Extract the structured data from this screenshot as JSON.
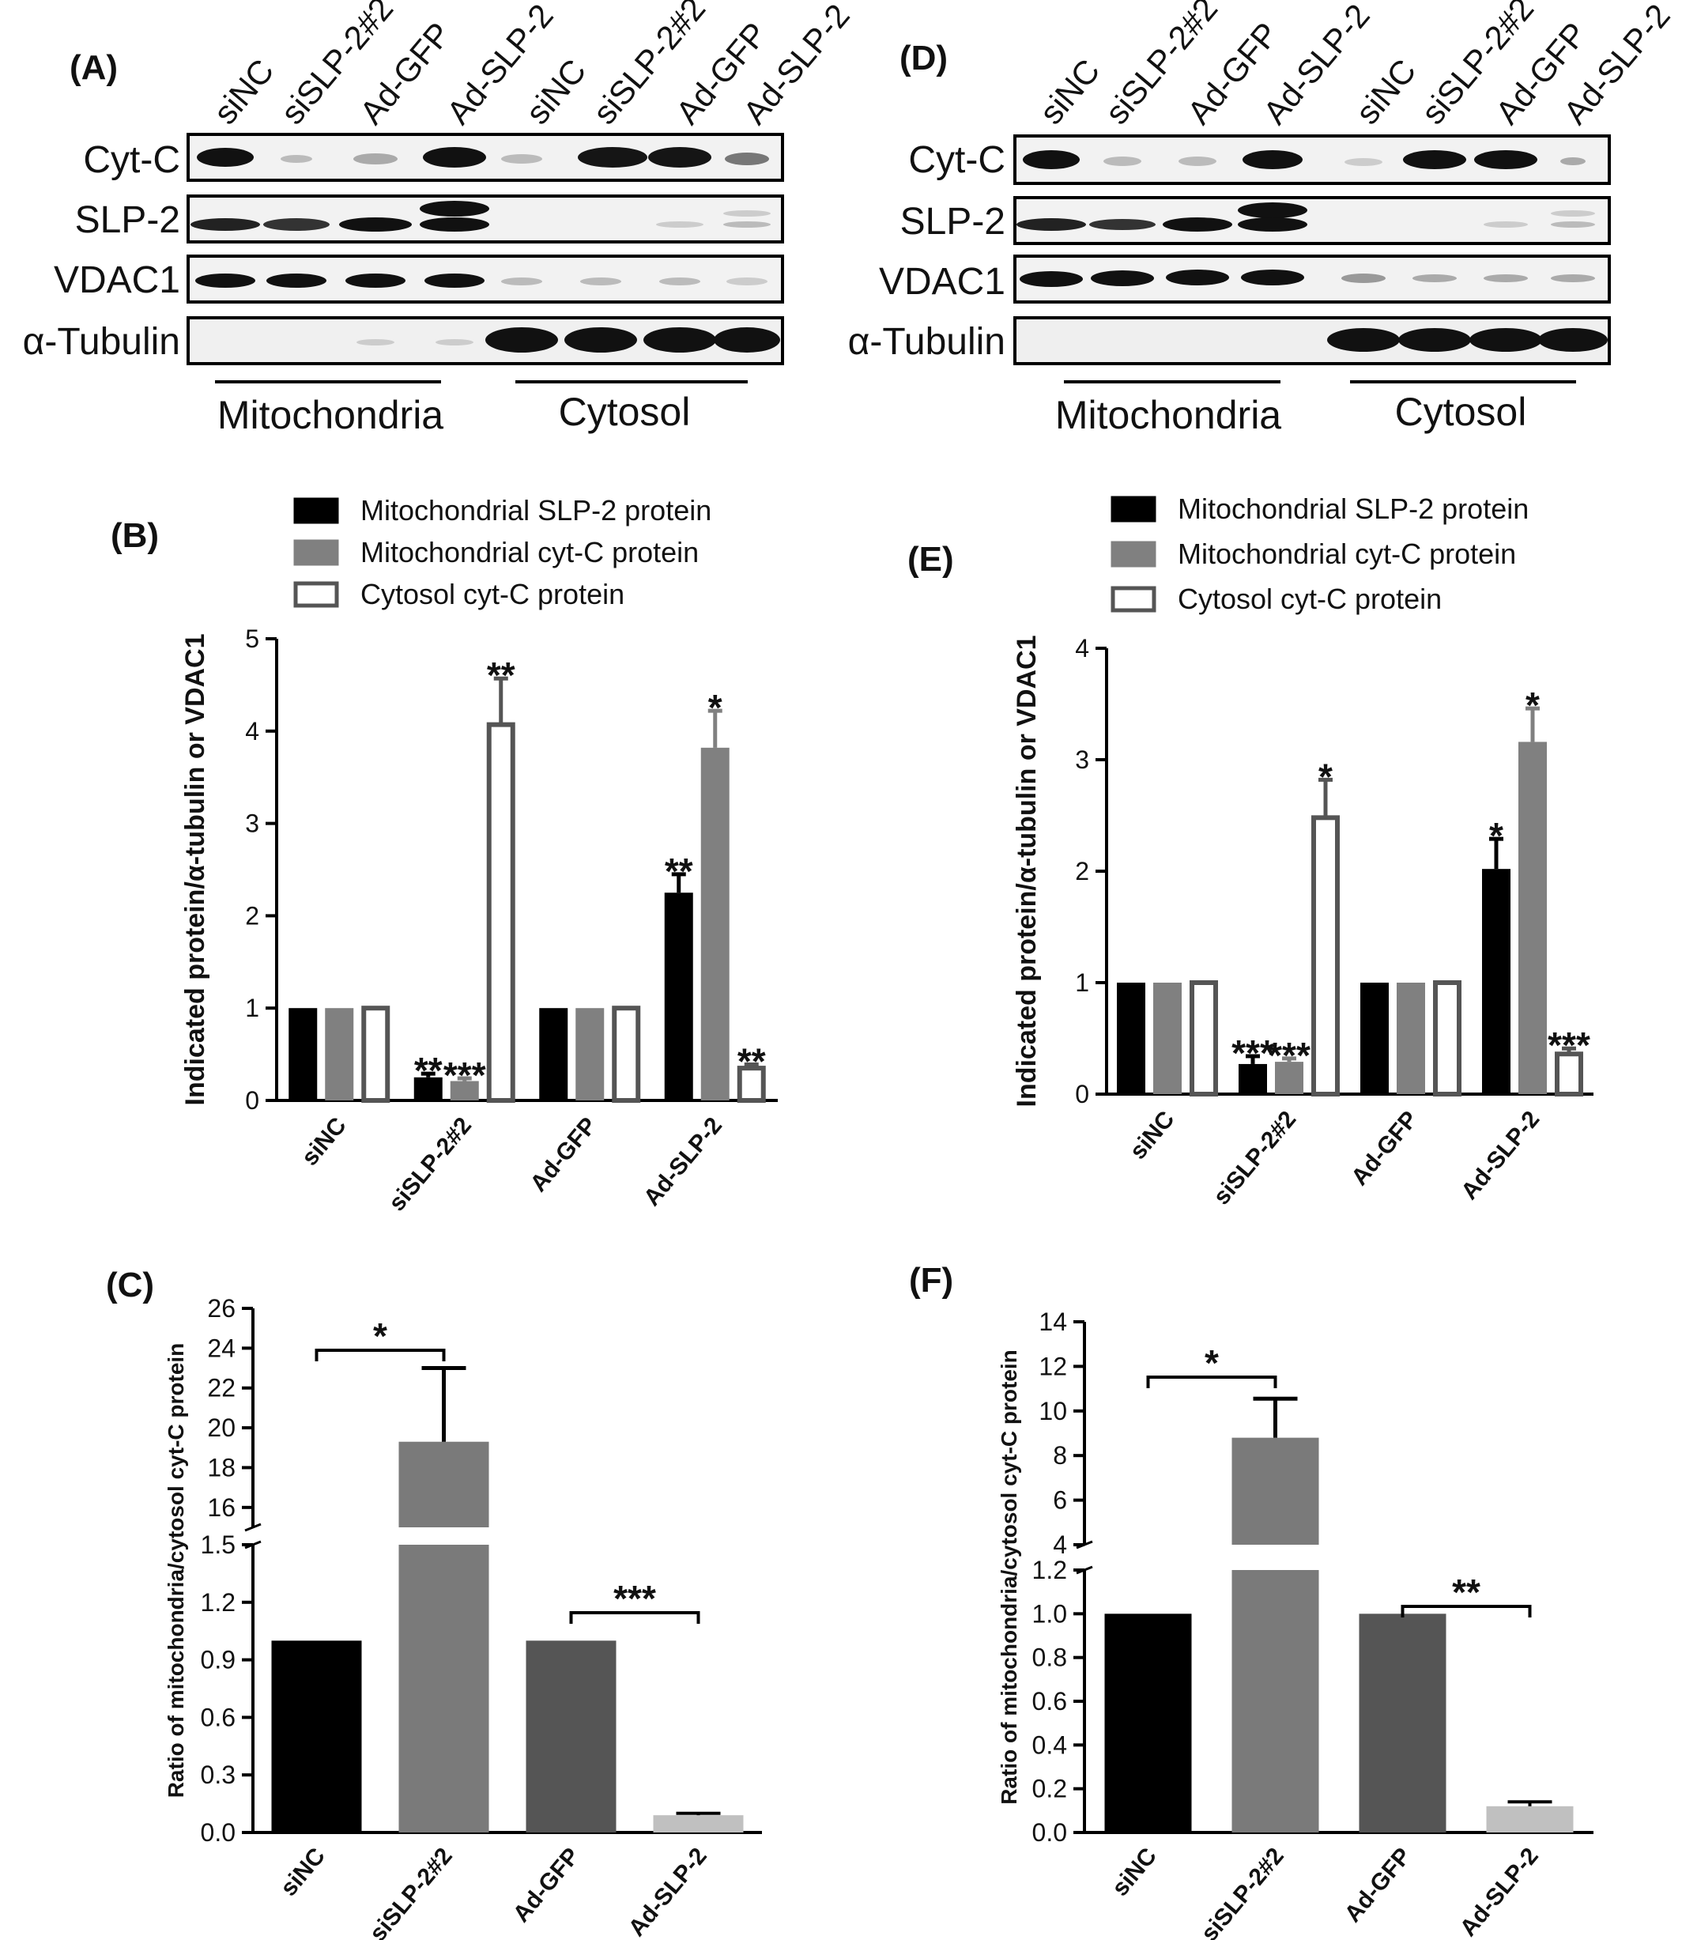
{
  "panels": {
    "a": "(A)",
    "b": "(B)",
    "c": "(C)",
    "d": "(D)",
    "e": "(E)",
    "f": "(F)"
  },
  "blots": [
    {
      "lanes": [
        "siNC",
        "siSLP-2#2",
        "Ad-GFP",
        "Ad-SLP-2",
        "siNC",
        "siSLP-2#2",
        "Ad-GFP",
        "Ad-SLP-2"
      ],
      "rows": [
        "Cyt-C",
        "SLP-2",
        "VDAC1",
        "α-Tubulin"
      ],
      "groups": [
        "Mitochondria",
        "Cytosol"
      ]
    },
    {
      "lanes": [
        "siNC",
        "siSLP-2#2",
        "Ad-GFP",
        "Ad-SLP-2",
        "siNC",
        "siSLP-2#2",
        "Ad-GFP",
        "Ad-SLP-2"
      ],
      "rows": [
        "Cyt-C",
        "SLP-2",
        "VDAC1",
        "α-Tubulin"
      ],
      "groups": [
        "Mitochondria",
        "Cytosol"
      ]
    }
  ],
  "chart_data": [
    {
      "type": "bar",
      "panel": "B",
      "categories": [
        "siNC",
        "siSLP-2#2",
        "Ad-GFP",
        "Ad-SLP-2"
      ],
      "series": [
        {
          "name": "Mitochondrial SLP-2 protein",
          "values": [
            1.0,
            0.25,
            1.0,
            2.25
          ],
          "errors": [
            0,
            0.04,
            0,
            0.2
          ],
          "color": "#000000",
          "style": "solid"
        },
        {
          "name": "Mitochondrial cyt-C protein",
          "values": [
            1.0,
            0.21,
            1.0,
            3.82
          ],
          "errors": [
            0,
            0.03,
            0,
            0.4
          ],
          "color": "#808080",
          "style": "solid"
        },
        {
          "name": "Cytosol  cyt-C protein",
          "values": [
            1.0,
            4.07,
            1.0,
            0.35
          ],
          "errors": [
            0,
            0.5,
            0,
            0.04
          ],
          "color": "#ffffff",
          "style": "outline"
        }
      ],
      "significance": [
        [
          "",
          "**",
          "",
          "**"
        ],
        [
          "",
          "***",
          "",
          "*"
        ],
        [
          "",
          "**",
          "",
          "**"
        ]
      ],
      "ylabel": "Indicated protein/α-tubulin or VDAC1",
      "ylim": [
        0,
        5
      ],
      "yticks": [
        "0",
        "1",
        "2",
        "3",
        "4",
        "5"
      ]
    },
    {
      "type": "bar",
      "panel": "C",
      "categories": [
        "siNC",
        "siSLP-2#2",
        "Ad-GFP",
        "Ad-SLP-2"
      ],
      "values": [
        1.0,
        19.3,
        1.0,
        0.09
      ],
      "errors": [
        0,
        3.7,
        0,
        0.01
      ],
      "colors": [
        "#000000",
        "#7a7a7a",
        "#555555",
        "#c0c0c0"
      ],
      "ylabel": "Ratio of  mitochondria/cytosol cyt-C protein",
      "axis_break": {
        "lower": [
          0,
          1.5
        ],
        "upper": [
          15,
          26
        ]
      },
      "yticks_lower": [
        "0.0",
        "0.3",
        "0.6",
        "0.9",
        "1.2",
        "1.5"
      ],
      "yticks_upper": [
        "16",
        "18",
        "20",
        "22",
        "24",
        "26"
      ],
      "brackets": [
        {
          "from": 0,
          "to": 1,
          "label": "*"
        },
        {
          "from": 2,
          "to": 3,
          "label": "***"
        }
      ]
    },
    {
      "type": "bar",
      "panel": "E",
      "categories": [
        "siNC",
        "siSLP-2#2",
        "Ad-GFP",
        "Ad-SLP-2"
      ],
      "series": [
        {
          "name": "Mitochondrial SLP-2 protein",
          "values": [
            1.0,
            0.27,
            1.0,
            2.02
          ],
          "errors": [
            0,
            0.07,
            0,
            0.27
          ],
          "color": "#000000",
          "style": "solid"
        },
        {
          "name": "Mitochondrial cyt-C protein",
          "values": [
            1.0,
            0.29,
            1.0,
            3.16
          ],
          "errors": [
            0,
            0.03,
            0,
            0.3
          ],
          "color": "#808080",
          "style": "solid"
        },
        {
          "name": "Cytosol cyt-C protein",
          "values": [
            1.0,
            2.48,
            1.0,
            0.36
          ],
          "errors": [
            0,
            0.34,
            0,
            0.05
          ],
          "color": "#ffffff",
          "style": "outline"
        }
      ],
      "significance": [
        [
          "",
          "***",
          "",
          "*"
        ],
        [
          "",
          "***",
          "",
          "*"
        ],
        [
          "",
          "*",
          "",
          "***"
        ]
      ],
      "ylabel": "Indicated protein/α-tubulin or VDAC1",
      "ylim": [
        0,
        4
      ],
      "yticks": [
        "0",
        "1",
        "2",
        "3",
        "4"
      ]
    },
    {
      "type": "bar",
      "panel": "F",
      "categories": [
        "siNC",
        "siSLP-2#2",
        "Ad-GFP",
        "Ad-SLP-2"
      ],
      "values": [
        1.0,
        8.8,
        1.0,
        0.12
      ],
      "errors": [
        0,
        1.75,
        0,
        0.02
      ],
      "colors": [
        "#000000",
        "#7a7a7a",
        "#555555",
        "#c0c0c0"
      ],
      "ylabel": "Ratio of  mitochondria/cytosol cyt-C protein",
      "axis_break": {
        "lower": [
          0,
          1.2
        ],
        "upper": [
          4,
          14
        ]
      },
      "yticks_lower": [
        "0.0",
        "0.2",
        "0.4",
        "0.6",
        "0.8",
        "1.0",
        "1.2"
      ],
      "yticks_upper": [
        "4",
        "6",
        "8",
        "10",
        "12",
        "14"
      ],
      "brackets": [
        {
          "from": 0,
          "to": 1,
          "label": "*"
        },
        {
          "from": 2,
          "to": 3,
          "label": "**"
        }
      ]
    }
  ]
}
